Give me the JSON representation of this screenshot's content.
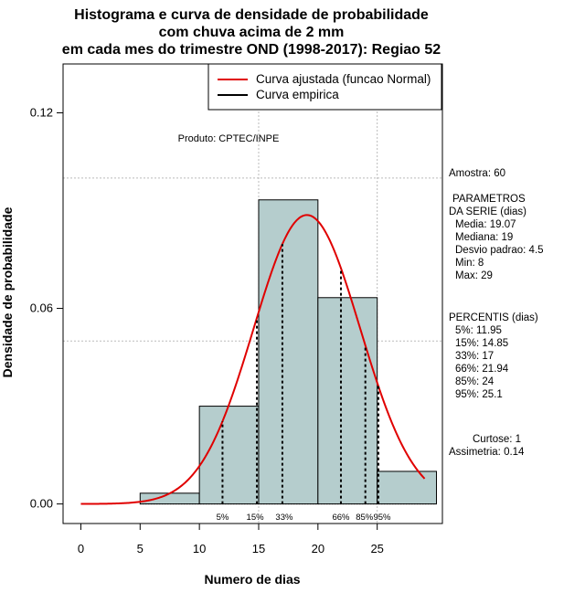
{
  "chart_data": {
    "type": "histogram",
    "title_lines": [
      "Histograma e curva de densidade de probabilidade",
      "com chuva acima de 2 mm",
      "em cada mes do trimestre OND (1998-2017): Regiao 52"
    ],
    "xlabel": "Numero de dias",
    "ylabel": "Densidade de probabilidade",
    "xlim": [
      -1.5,
      30.5
    ],
    "ylim": [
      -0.006,
      0.135
    ],
    "x_ticks": [
      0,
      5,
      10,
      15,
      20,
      25
    ],
    "x_tick_labels": [
      "0",
      "5",
      "10",
      "15",
      "20",
      "25"
    ],
    "y_ticks": [
      0.0,
      0.06,
      0.12
    ],
    "y_tick_labels": [
      "0.00",
      "0.06",
      "0.12"
    ],
    "grid_y": [
      0.05,
      0.1
    ],
    "grid_x": [
      15,
      25
    ],
    "bins": [
      {
        "start": 5,
        "end": 10,
        "density": 0.0033
      },
      {
        "start": 10,
        "end": 15,
        "density": 0.03
      },
      {
        "start": 15,
        "end": 20,
        "density": 0.0933
      },
      {
        "start": 20,
        "end": 25,
        "density": 0.0633
      },
      {
        "start": 25,
        "end": 30,
        "density": 0.01
      }
    ],
    "normal_curve": {
      "mean": 19.07,
      "sd": 4.5,
      "x_from": 0,
      "x_to": 29
    },
    "percentile_lines": [
      {
        "label": "5%",
        "x": 11.95
      },
      {
        "label": "15%",
        "x": 14.85
      },
      {
        "label": "33%",
        "x": 17
      },
      {
        "label": "66%",
        "x": 21.94
      },
      {
        "label": "85%",
        "x": 24
      },
      {
        "label": "95%",
        "x": 25.1
      }
    ],
    "legend": {
      "placement": "top-right",
      "entries": [
        {
          "label": "Curva ajustada (funcao Normal)",
          "color": "#e00000"
        },
        {
          "label": "Curva empirica",
          "color": "#000000"
        }
      ]
    },
    "annotation": "Produto: CPTEC/INPE",
    "colors": {
      "bar_fill": "#b5cdcd",
      "curve": "#e00000"
    }
  },
  "side_panel": {
    "sample": "Amostra: 60",
    "params_title": "PARAMETROS",
    "params_subtitle": "DA SERIE (dias)",
    "params": [
      "Media: 19.07",
      "Mediana: 19",
      "Desvio padrao: 4.5",
      "Min: 8",
      "Max: 29"
    ],
    "percentis_title": "PERCENTIS (dias)",
    "percentis": [
      "5%: 11.95",
      "15%: 14.85",
      "33%: 17",
      "66%: 21.94",
      "85%: 24",
      "95%: 25.1"
    ],
    "curtose": "Curtose: 1",
    "assimetria": "Assimetria: 0.14"
  }
}
